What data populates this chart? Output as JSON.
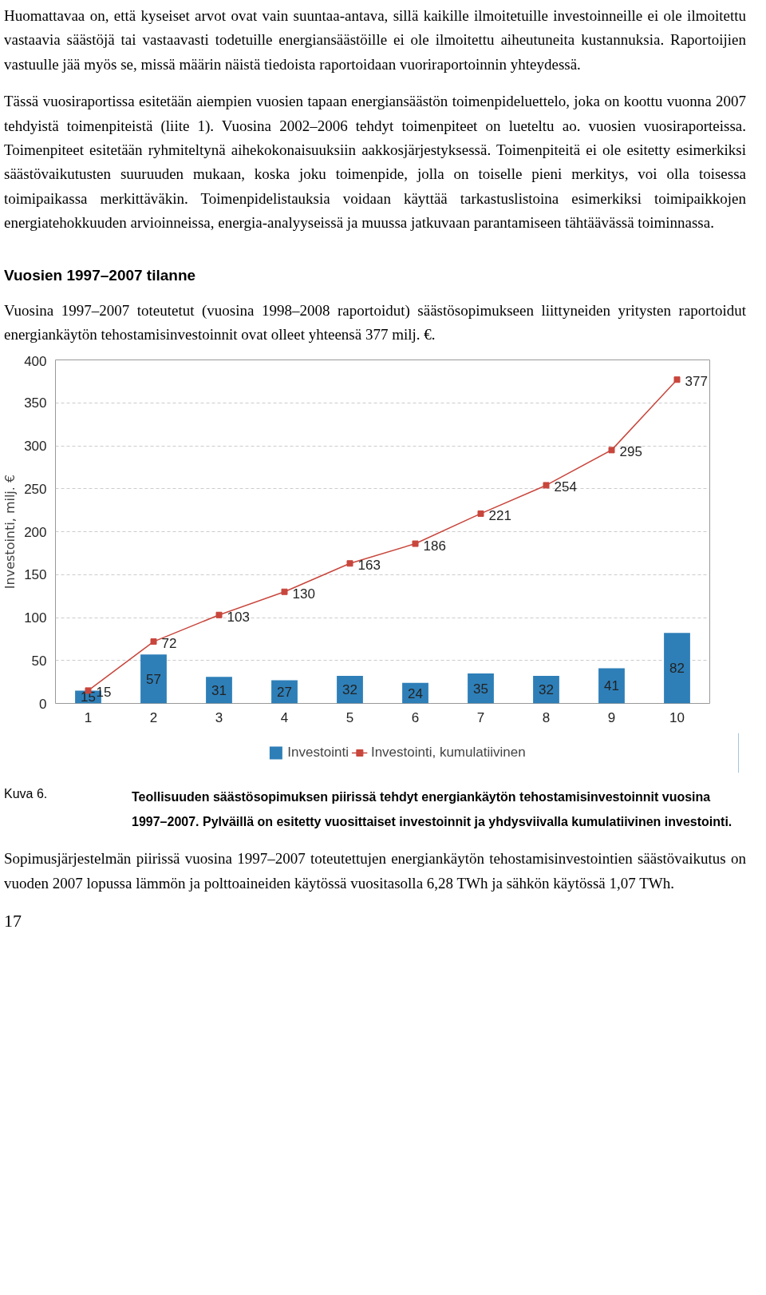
{
  "chart_data": {
    "type": "bar",
    "title": "Vuosien 1997–2007 tilanne",
    "subtitle": "Vuosina 1997–2007 toteutetut (vuosina 1998–2008 raportoidut) säästösopimukseen liittyneiden yritysten raportoidut energiankäytön tehostamisinvestoinnit ovat olleet yhteensä 377 milj. €.",
    "ylabel": "Investointi, milj. €",
    "categories": [
      "1",
      "2",
      "3",
      "4",
      "5",
      "6",
      "7",
      "8",
      "9",
      "10"
    ],
    "series": [
      {
        "name": "Investointi",
        "color": "#2e7fb8",
        "values": [
          15,
          57,
          31,
          27,
          32,
          24,
          35,
          32,
          41,
          82
        ]
      },
      {
        "name": "Investointi, kumulatiivinen",
        "type": "line",
        "color": "#c8463c",
        "values": [
          15,
          72,
          103,
          130,
          163,
          186,
          221,
          254,
          295,
          377
        ]
      }
    ],
    "ylim": [
      0,
      400
    ],
    "yticks": [
      0,
      50,
      100,
      150,
      200,
      250,
      300,
      350,
      400
    ],
    "grid": "y",
    "legend": "bottom",
    "marker": "square",
    "line_style": "solid",
    "data_labels": true,
    "annotations": [
      "Huomattavaa on, että kyseiset arvot ovat vain suuntaa-antava, sillä kaikille ilmoitetuille investoinneille ei ole ilmoitettu vastaavia säästöjä tai vastaavasti todetuille energiansäästöille ei ole ilmoitettu aiheutuneita kustannuksia. Raportoijien vastuulle jää myös se, missä määrin näistä tiedoista raportoidaan vuoriraportoinnin yhteydessä.",
      "Tässä vuosiraportissa esitetään aiempien vuosien tapaan energiansäästön toimenpideluettelo, joka on koottu vuonna 2007 tehdyistä toimenpiteistä (liite 1). Vuosina 2002–2006 tehdyt toimenpiteet on lueteltu ao. vuosien vuosiraporteissa. Toimenpiteet esitetään ryhmiteltynä aihekokonaisuuksiin aakkosjärjestyksessä. Toimenpiteitä ei ole esitetty esimerkiksi säästövaikutusten suuruuden mukaan, koska joku toimenpide, jolla on toiselle pieni merkitys, voi olla toisessa toimipaikassa merkittäväkin. Toimenpidelistauksia voidaan käyttää tarkastuslistoina esimerkiksi toimipaikkojen energiatehokkuuden arvioinneissa, energia-analyyseissä ja muussa jatkuvaan parantamiseen tähtäävässä toiminnassa.",
      "Kuva 6.",
      "Teollisuuden säästösopimuksen piirissä tehdyt energiankäytön tehostamisinvestoinnit vuosina 1997–2007. Pylväillä on esitetty vuosittaiset investoinnit ja yhdysviivalla kumulatiivinen investointi.",
      "Sopimusjärjestelmän piirissä vuosina 1997–2007 toteutettujen energiankäytön tehostamisinvestointien säästövaikutus on vuoden 2007 lopussa lämmön ja polttoaineiden käytössä vuositasolla 6,28 TWh ja sähkön käytössä 1,07 TWh.",
      "17"
    ]
  }
}
